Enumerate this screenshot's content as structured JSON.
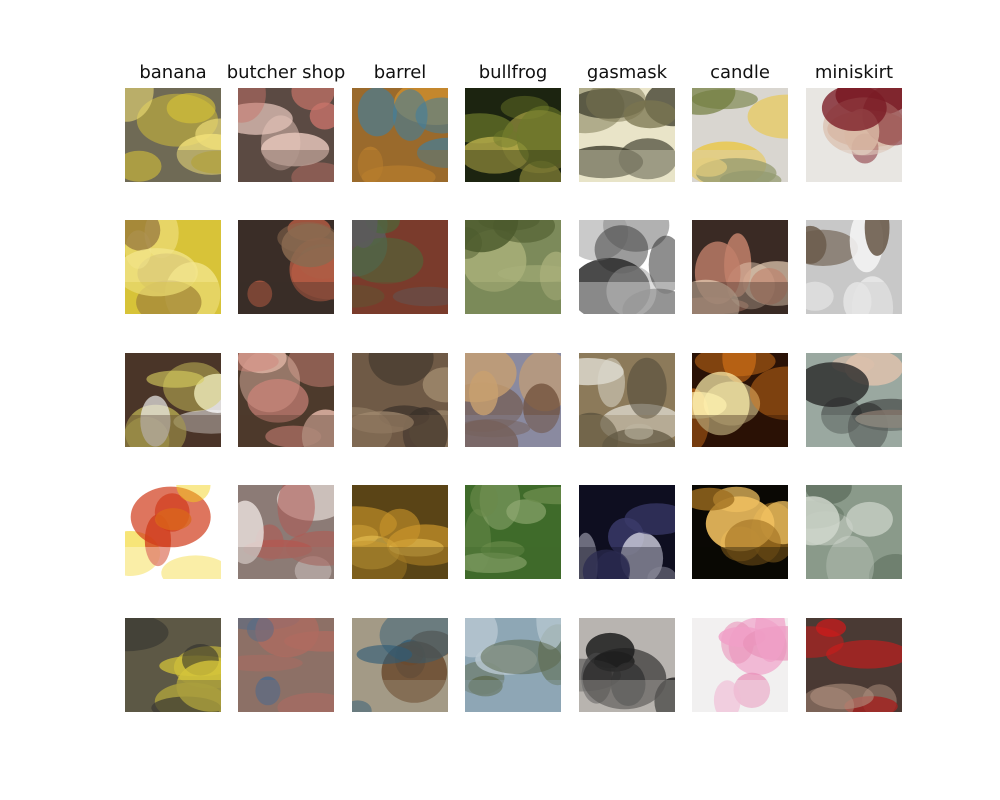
{
  "figure": {
    "columns": [
      {
        "label": "banana",
        "images": [
          {
            "icon": "banana-bunch-photo",
            "palette": [
              "#6f6a55",
              "#d8c338",
              "#f2e27a"
            ]
          },
          {
            "icon": "banana-bunch-photo",
            "palette": [
              "#d8c338",
              "#f3e68e",
              "#8b6a3a"
            ]
          },
          {
            "icon": "banana-on-table-photo",
            "palette": [
              "#4a3528",
              "#d8cf5f",
              "#f2f2f2"
            ]
          },
          {
            "icon": "banana-sticker-photo",
            "palette": [
              "#ffffff",
              "#f2d21a",
              "#d03a1a"
            ]
          },
          {
            "icon": "banana-in-bowl-photo",
            "palette": [
              "#5d5845",
              "#d4c43a",
              "#2b2b2b"
            ]
          }
        ]
      },
      {
        "label": "butcher shop",
        "images": [
          {
            "icon": "market-stall-photo",
            "palette": [
              "#5b4a43",
              "#c8746a",
              "#e7c6bc"
            ]
          },
          {
            "icon": "hanging-meat-photo",
            "palette": [
              "#3a2d27",
              "#b45b43",
              "#8a6a50"
            ]
          },
          {
            "icon": "meat-counter-photo",
            "palette": [
              "#4d3a2c",
              "#d0857a",
              "#e1b5a5"
            ]
          },
          {
            "icon": "meat-hall-photo",
            "palette": [
              "#8c7b76",
              "#b05a53",
              "#e4dad6"
            ]
          },
          {
            "icon": "outdoor-meat-stall-photo",
            "palette": [
              "#8d7066",
              "#b06b60",
              "#4d6a8c"
            ]
          }
        ]
      },
      {
        "label": "barrel",
        "images": [
          {
            "icon": "rusty-barrels-photo",
            "palette": [
              "#9a6a2c",
              "#3f7fa0",
              "#c98a2e"
            ]
          },
          {
            "icon": "rain-barrel-photo",
            "palette": [
              "#7a3b2c",
              "#5b5b5b",
              "#4b6a3a"
            ]
          },
          {
            "icon": "wooden-barrel-photo",
            "palette": [
              "#6f5a46",
              "#a08a6e",
              "#3d332a"
            ]
          },
          {
            "icon": "stacked-barrels-photo",
            "palette": [
              "#5a4416",
              "#c9952a",
              "#e6bf52"
            ]
          },
          {
            "icon": "barrel-rodeo-photo",
            "palette": [
              "#a39a86",
              "#2f5c78",
              "#6b4a2e"
            ]
          }
        ]
      },
      {
        "label": "bullfrog",
        "images": [
          {
            "icon": "frog-in-pond-photo",
            "palette": [
              "#1c2410",
              "#6d7a2a",
              "#b7ad4a"
            ]
          },
          {
            "icon": "frog-in-grass-photo",
            "palette": [
              "#7c8a5a",
              "#4c5a2c",
              "#a9b07a"
            ]
          },
          {
            "icon": "frog-closeup-photo",
            "palette": [
              "#8a8aa0",
              "#6b4a35",
              "#c9a070"
            ]
          },
          {
            "icon": "frog-on-grass-photo",
            "palette": [
              "#3f6b2a",
              "#6a8a4a",
              "#9ab07a"
            ]
          },
          {
            "icon": "frog-in-water-photo",
            "palette": [
              "#8ea7b5",
              "#5d6a4e",
              "#b9c9d2"
            ]
          }
        ]
      },
      {
        "label": "gasmask",
        "images": [
          {
            "icon": "gasmask-face-photo",
            "palette": [
              "#e9e4c8",
              "#3a3a2a",
              "#7a7550"
            ]
          },
          {
            "icon": "respirator-product-photo",
            "palette": [
              "#ffffff",
              "#2a2a2a",
              "#9a9a9a"
            ]
          },
          {
            "icon": "gasmask-person-photo",
            "palette": [
              "#8c7a5a",
              "#dcd8cc",
              "#4a4536"
            ]
          },
          {
            "icon": "gasmask-dark-photo",
            "palette": [
              "#0e0e20",
              "#3a3a6a",
              "#c8c8d8"
            ]
          },
          {
            "icon": "gasmask-portrait-photo",
            "palette": [
              "#b8b4b0",
              "#1e1e1e",
              "#4a4a4a"
            ]
          }
        ]
      },
      {
        "label": "candle",
        "images": [
          {
            "icon": "candle-jars-photo",
            "palette": [
              "#d9d6d0",
              "#6f7a3a",
              "#e8c850"
            ]
          },
          {
            "icon": "birthday-candle-photo",
            "palette": [
              "#3a2a24",
              "#c0806a",
              "#e8d0b8"
            ]
          },
          {
            "icon": "candle-flame-photo",
            "palette": [
              "#2a1206",
              "#e07a1a",
              "#fff2b0"
            ]
          },
          {
            "icon": "candle-glass-holder-photo",
            "palette": [
              "#0a0804",
              "#a07020",
              "#f0c060"
            ]
          },
          {
            "icon": "pink-candle-photo",
            "palette": [
              "#f2f0f0",
              "#f0a0c8",
              "#e890b8"
            ]
          }
        ]
      },
      {
        "label": "miniskirt",
        "images": [
          {
            "icon": "miniskirt-person-photo",
            "palette": [
              "#e8e6e2",
              "#7a1a24",
              "#d8b8a4"
            ]
          },
          {
            "icon": "miniskirt-hallway-photo",
            "palette": [
              "#c8c8c8",
              "#f4f4f4",
              "#6a5a4a"
            ]
          },
          {
            "icon": "miniskirt-office-photo",
            "palette": [
              "#9aa8a0",
              "#2a2a2a",
              "#dcc0ac"
            ]
          },
          {
            "icon": "miniskirt-mirror-photo",
            "palette": [
              "#8a9a8a",
              "#cfd6cc",
              "#5a6a5a"
            ]
          },
          {
            "icon": "miniskirt-red-photo",
            "palette": [
              "#4a3a34",
              "#d01a1a",
              "#e8c0a8"
            ]
          }
        ]
      }
    ]
  }
}
